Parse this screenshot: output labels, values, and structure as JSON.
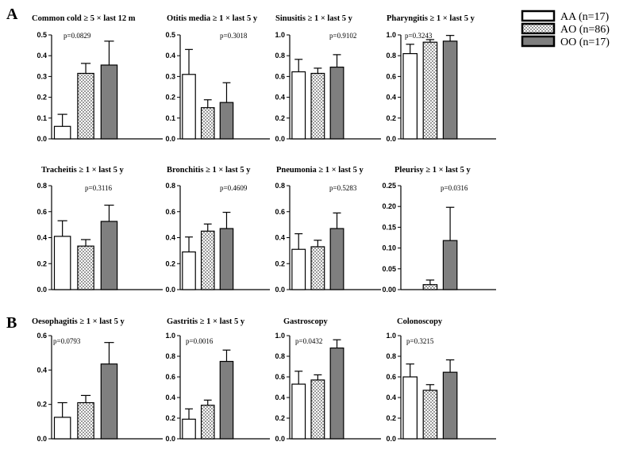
{
  "figure": {
    "panel_labels": [
      "A",
      "B"
    ],
    "legend": [
      {
        "label": "AA (n=17)",
        "fill": "white"
      },
      {
        "label": "AO (n=86)",
        "fill": "check"
      },
      {
        "label": "OO (n=17)",
        "fill": "gray"
      }
    ],
    "colors": {
      "gray_bar": "#7f7f7f",
      "check_light": "#ffffff",
      "check_dark": "#9a9a9a",
      "stroke": "#000000"
    }
  },
  "chart_data": [
    {
      "type": "bar",
      "title": "Common cold  ≥ 5 × last 12 m",
      "p_label": "p=0.0829",
      "categories": [
        "AA (n=17)",
        "AO (n=86)",
        "OO (n=17)"
      ],
      "values": [
        0.06,
        0.315,
        0.355
      ],
      "errors": [
        0.058,
        0.048,
        0.115
      ],
      "ylim": [
        0,
        0.5
      ],
      "yticks": [
        0.0,
        0.1,
        0.2,
        0.3,
        0.4,
        0.5
      ],
      "tick_labels": [
        "0.0",
        "0.1",
        "0.2",
        "0.3",
        "0.4",
        "0.5"
      ]
    },
    {
      "type": "bar",
      "title": "Otitis media  ≥ 1 × last 5 y",
      "p_label": "p=0.3018",
      "categories": [
        "AA (n=17)",
        "AO (n=86)",
        "OO (n=17)"
      ],
      "values": [
        0.31,
        0.15,
        0.175
      ],
      "errors": [
        0.12,
        0.038,
        0.095
      ],
      "ylim": [
        0,
        0.5
      ],
      "yticks": [
        0.0,
        0.1,
        0.2,
        0.3,
        0.4,
        0.5
      ],
      "tick_labels": [
        "0.0",
        "0.1",
        "0.2",
        "0.3",
        "0.4",
        "0.5"
      ]
    },
    {
      "type": "bar",
      "title": "Sinusitis  ≥ 1 × last 5 y",
      "p_label": "p=0.9102",
      "categories": [
        "AA (n=17)",
        "AO (n=86)",
        "OO (n=17)"
      ],
      "values": [
        0.645,
        0.63,
        0.69
      ],
      "errors": [
        0.12,
        0.05,
        0.12
      ],
      "ylim": [
        0,
        1.0
      ],
      "yticks": [
        0.0,
        0.2,
        0.4,
        0.6,
        0.8,
        1.0
      ],
      "tick_labels": [
        "0.0",
        "0.2",
        "0.4",
        "0.6",
        "0.8",
        "1.0"
      ]
    },
    {
      "type": "bar",
      "title": "Pharyngitis  ≥ 1 × last 5 y",
      "p_label": "p=0.3243",
      "categories": [
        "AA (n=17)",
        "AO (n=86)",
        "OO (n=17)"
      ],
      "values": [
        0.82,
        0.93,
        0.94
      ],
      "errors": [
        0.09,
        0.025,
        0.055
      ],
      "ylim": [
        0,
        1.0
      ],
      "yticks": [
        0.0,
        0.2,
        0.4,
        0.6,
        0.8,
        1.0
      ],
      "tick_labels": [
        "0.0",
        "0.2",
        "0.4",
        "0.6",
        "0.8",
        "1.0"
      ]
    },
    {
      "type": "bar",
      "title": "Tracheitis  ≥ 1 × last 5 y",
      "p_label": "p=0.3116",
      "categories": [
        "AA (n=17)",
        "AO (n=86)",
        "OO (n=17)"
      ],
      "values": [
        0.41,
        0.335,
        0.525
      ],
      "errors": [
        0.12,
        0.05,
        0.125
      ],
      "ylim": [
        0,
        0.8
      ],
      "yticks": [
        0.0,
        0.2,
        0.4,
        0.6,
        0.8
      ],
      "tick_labels": [
        "0.0",
        "0.2",
        "0.4",
        "0.6",
        "0.8"
      ]
    },
    {
      "type": "bar",
      "title": "Bronchitis  ≥ 1 × last 5 y",
      "p_label": "p=0.4609",
      "categories": [
        "AA (n=17)",
        "AO (n=86)",
        "OO (n=17)"
      ],
      "values": [
        0.29,
        0.45,
        0.47
      ],
      "errors": [
        0.115,
        0.055,
        0.125
      ],
      "ylim": [
        0,
        0.8
      ],
      "yticks": [
        0.0,
        0.2,
        0.4,
        0.6,
        0.8
      ],
      "tick_labels": [
        "0.0",
        "0.2",
        "0.4",
        "0.6",
        "0.8"
      ]
    },
    {
      "type": "bar",
      "title": "Pneumonia  ≥ 1 × last 5 y",
      "p_label": "p=0.5283",
      "categories": [
        "AA (n=17)",
        "AO (n=86)",
        "OO (n=17)"
      ],
      "values": [
        0.31,
        0.33,
        0.47
      ],
      "errors": [
        0.12,
        0.05,
        0.12
      ],
      "ylim": [
        0,
        0.8
      ],
      "yticks": [
        0.0,
        0.2,
        0.4,
        0.6,
        0.8
      ],
      "tick_labels": [
        "0.0",
        "0.2",
        "0.4",
        "0.6",
        "0.8"
      ]
    },
    {
      "type": "bar",
      "title": "Pleurisy  ≥ 1 × last 5 y",
      "p_label": "p=0.0316",
      "categories": [
        "AA (n=17)",
        "AO (n=86)",
        "OO (n=17)"
      ],
      "values": [
        0.0,
        0.012,
        0.118
      ],
      "errors": [
        0.0,
        0.011,
        0.08
      ],
      "ylim": [
        0,
        0.25
      ],
      "yticks": [
        0.0,
        0.05,
        0.1,
        0.15,
        0.2,
        0.25
      ],
      "tick_labels": [
        "0.00",
        "0.05",
        "0.10",
        "0.15",
        "0.20",
        "0.25"
      ]
    },
    {
      "type": "bar",
      "title": "Oesophagitis  ≥ 1 × last 5 y",
      "p_label": "p=0.0793",
      "categories": [
        "AA (n=17)",
        "AO (n=86)",
        "OO (n=17)"
      ],
      "values": [
        0.125,
        0.21,
        0.435
      ],
      "errors": [
        0.085,
        0.042,
        0.125
      ],
      "ylim": [
        0,
        0.6
      ],
      "yticks": [
        0.0,
        0.2,
        0.4,
        0.6
      ],
      "tick_labels": [
        "0.0",
        "0.2",
        "0.4",
        "0.6"
      ]
    },
    {
      "type": "bar",
      "title": "Gastritis  ≥ 1 × last 5 y",
      "p_label": "p=0.0016",
      "categories": [
        "AA (n=17)",
        "AO (n=86)",
        "OO (n=17)"
      ],
      "values": [
        0.19,
        0.325,
        0.75
      ],
      "errors": [
        0.1,
        0.05,
        0.11
      ],
      "ylim": [
        0,
        1.0
      ],
      "yticks": [
        0.0,
        0.2,
        0.4,
        0.6,
        0.8,
        1.0
      ],
      "tick_labels": [
        "0.0",
        "0.2",
        "0.4",
        "0.6",
        "0.8",
        "1.0"
      ]
    },
    {
      "type": "bar",
      "title": "Gastroscopy",
      "p_label": "p=0.0432",
      "categories": [
        "AA (n=17)",
        "AO (n=86)",
        "OO (n=17)"
      ],
      "values": [
        0.53,
        0.57,
        0.88
      ],
      "errors": [
        0.125,
        0.05,
        0.08
      ],
      "ylim": [
        0,
        1.0
      ],
      "yticks": [
        0.0,
        0.2,
        0.4,
        0.6,
        0.8,
        1.0
      ],
      "tick_labels": [
        "0.0",
        "0.2",
        "0.4",
        "0.6",
        "0.8",
        "1.0"
      ]
    },
    {
      "type": "bar",
      "title": "Colonoscopy",
      "p_label": "p=0.3215",
      "categories": [
        "AA (n=17)",
        "AO (n=86)",
        "OO (n=17)"
      ],
      "values": [
        0.6,
        0.47,
        0.645
      ],
      "errors": [
        0.125,
        0.055,
        0.12
      ],
      "ylim": [
        0,
        1.0
      ],
      "yticks": [
        0.0,
        0.2,
        0.4,
        0.6,
        0.8,
        1.0
      ],
      "tick_labels": [
        "0.0",
        "0.2",
        "0.4",
        "0.6",
        "0.8",
        "1.0"
      ]
    }
  ]
}
